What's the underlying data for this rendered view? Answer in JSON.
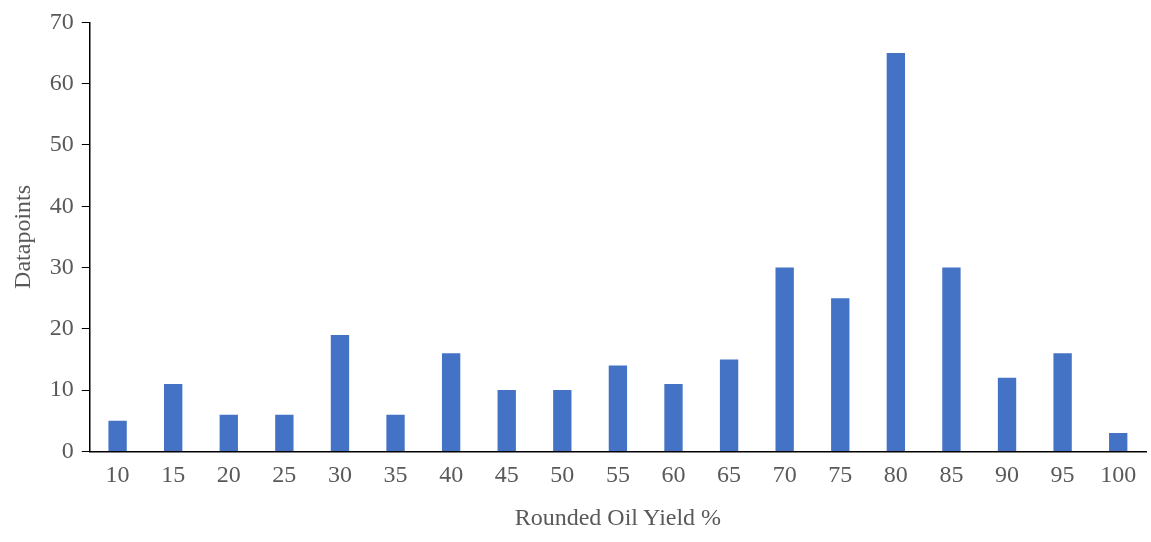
{
  "chart_data": {
    "type": "bar",
    "xlabel": "Rounded Oil Yield %",
    "ylabel": "Datapoints",
    "categories": [
      "10",
      "15",
      "20",
      "25",
      "30",
      "35",
      "40",
      "45",
      "50",
      "55",
      "60",
      "65",
      "70",
      "75",
      "80",
      "85",
      "90",
      "95",
      "100"
    ],
    "values": [
      5,
      11,
      6,
      6,
      19,
      6,
      16,
      10,
      10,
      14,
      11,
      15,
      30,
      25,
      65,
      30,
      12,
      16,
      3
    ],
    "color": "#4472c4",
    "ylim": [
      0,
      70
    ],
    "yticks": [
      0,
      10,
      20,
      30,
      40,
      50,
      60,
      70
    ],
    "grid": false,
    "legend": false
  }
}
